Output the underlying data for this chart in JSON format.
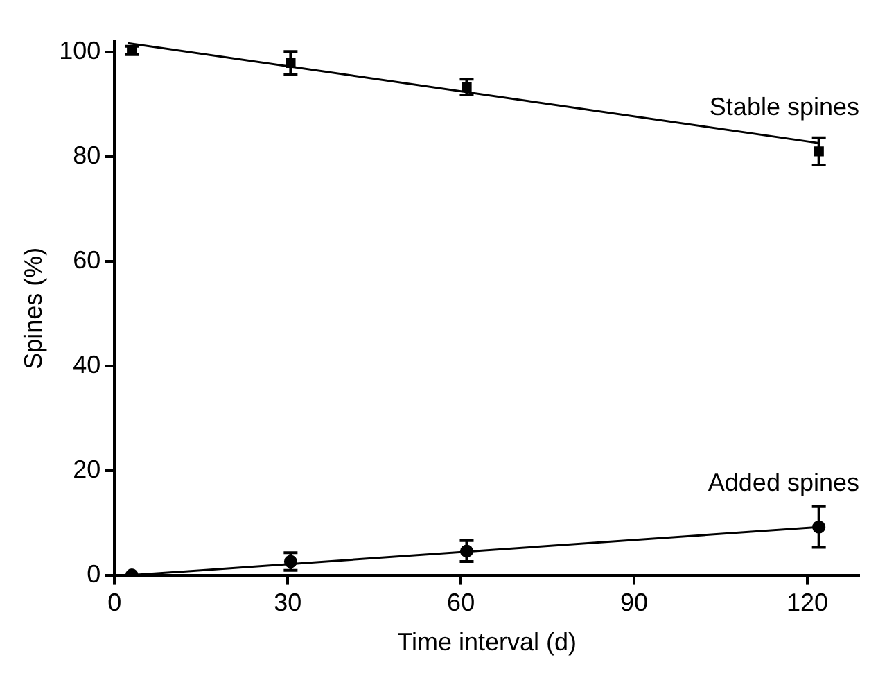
{
  "chart_data": {
    "type": "scatter",
    "xlabel": "Time interval (d)",
    "ylabel": "Spines (%)",
    "xlim": [
      0,
      129
    ],
    "xticks": [
      0,
      30,
      60,
      90,
      120
    ],
    "ylim": [
      0,
      102
    ],
    "yticks": [
      0,
      20,
      40,
      60,
      80,
      100
    ],
    "grid": false,
    "legend": false,
    "series": [
      {
        "name": "Stable spines",
        "color": "#000000",
        "marker": "square",
        "x": [
          3,
          30.5,
          61,
          122
        ],
        "values": [
          100.3,
          97.9,
          93.3,
          81
        ],
        "errors": [
          0.8,
          2.2,
          1.5,
          2.6
        ]
      },
      {
        "name": "Added spines",
        "color": "#000000",
        "marker": "circle",
        "x": [
          3,
          30.5,
          61,
          122
        ],
        "values": [
          0,
          2.6,
          4.6,
          9.2
        ],
        "errors": [
          null,
          1.7,
          2,
          3.9
        ]
      },
      {
        "type": "line",
        "color": "#000000",
        "marker": "none",
        "x": [
          2.3,
          122
        ],
        "values": [
          101.7,
          82.6
        ]
      },
      {
        "type": "line",
        "color": "#000000",
        "marker": "none",
        "x": [
          3,
          122
        ],
        "values": [
          0,
          9.2
        ]
      }
    ]
  }
}
